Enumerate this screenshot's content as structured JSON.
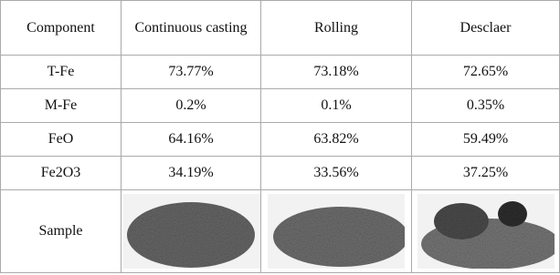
{
  "table": {
    "header": [
      "Component",
      "Continuous casting",
      "Rolling",
      "Desclaer"
    ],
    "rows": [
      [
        "T-Fe",
        "73.77%",
        "73.18%",
        "72.65%"
      ],
      [
        "M-Fe",
        "0.2%",
        "0.1%",
        "0.35%"
      ],
      [
        "FeO",
        "64.16%",
        "63.82%",
        "59.49%"
      ],
      [
        "Fe2O3",
        "34.19%",
        "33.56%",
        "37.25%"
      ]
    ],
    "sample_label": "Sample"
  }
}
